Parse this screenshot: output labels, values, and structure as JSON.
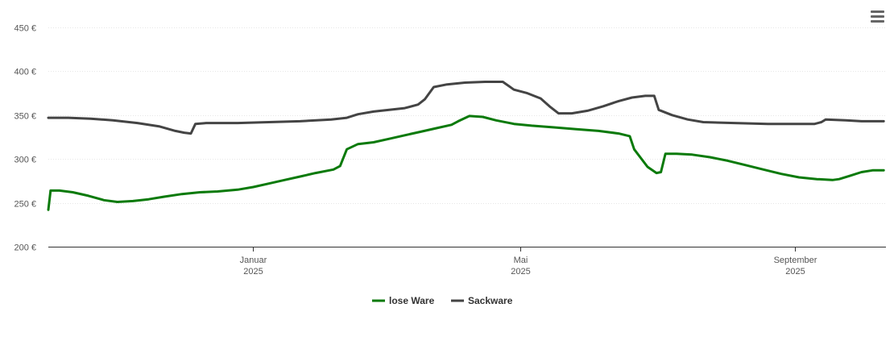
{
  "menu": {
    "icon": "hamburger-menu-icon"
  },
  "chart_data": {
    "type": "line",
    "title": "",
    "xlabel": "",
    "ylabel": "",
    "ylim": [
      200,
      450
    ],
    "yticks": [
      200,
      250,
      300,
      350,
      400,
      450
    ],
    "ytick_labels": [
      "200 €",
      "250 €",
      "300 €",
      "350 €",
      "400 €",
      "450 €"
    ],
    "xlim": [
      "2024-10-01",
      "2025-10-12"
    ],
    "xticks": [
      {
        "date": "2025-01-01",
        "label": "Januar",
        "year": "2025"
      },
      {
        "date": "2025-05-01",
        "label": "Mai",
        "year": "2025"
      },
      {
        "date": "2025-09-01",
        "label": "September",
        "year": "2025"
      }
    ],
    "grid": true,
    "legend": "bottom-center",
    "series": [
      {
        "name": "lose Ware",
        "color": "#0a7a0a",
        "points": [
          [
            "2024-10-01",
            242
          ],
          [
            "2024-10-02",
            264
          ],
          [
            "2024-10-06",
            264
          ],
          [
            "2024-10-12",
            262
          ],
          [
            "2024-10-19",
            258
          ],
          [
            "2024-10-26",
            253
          ],
          [
            "2024-11-01",
            251
          ],
          [
            "2024-11-08",
            252
          ],
          [
            "2024-11-15",
            254
          ],
          [
            "2024-11-22",
            257
          ],
          [
            "2024-11-30",
            260
          ],
          [
            "2024-12-08",
            262
          ],
          [
            "2024-12-16",
            263
          ],
          [
            "2024-12-25",
            265
          ],
          [
            "2025-01-01",
            268
          ],
          [
            "2025-01-08",
            272
          ],
          [
            "2025-01-15",
            276
          ],
          [
            "2025-01-22",
            280
          ],
          [
            "2025-01-29",
            284
          ],
          [
            "2025-02-06",
            288
          ],
          [
            "2025-02-09",
            292
          ],
          [
            "2025-02-12",
            311
          ],
          [
            "2025-02-17",
            317
          ],
          [
            "2025-02-24",
            319
          ],
          [
            "2025-03-03",
            323
          ],
          [
            "2025-03-10",
            327
          ],
          [
            "2025-03-17",
            331
          ],
          [
            "2025-03-24",
            335
          ],
          [
            "2025-03-31",
            339
          ],
          [
            "2025-04-03",
            343
          ],
          [
            "2025-04-08",
            349
          ],
          [
            "2025-04-14",
            348
          ],
          [
            "2025-04-20",
            344
          ],
          [
            "2025-04-28",
            340
          ],
          [
            "2025-05-06",
            338
          ],
          [
            "2025-05-16",
            336
          ],
          [
            "2025-05-26",
            334
          ],
          [
            "2025-06-05",
            332
          ],
          [
            "2025-06-14",
            329
          ],
          [
            "2025-06-19",
            326
          ],
          [
            "2025-06-21",
            311
          ],
          [
            "2025-06-27",
            291
          ],
          [
            "2025-07-01",
            284
          ],
          [
            "2025-07-03",
            285
          ],
          [
            "2025-07-05",
            306
          ],
          [
            "2025-07-10",
            306
          ],
          [
            "2025-07-17",
            305
          ],
          [
            "2025-07-25",
            302
          ],
          [
            "2025-08-02",
            298
          ],
          [
            "2025-08-10",
            293
          ],
          [
            "2025-08-18",
            288
          ],
          [
            "2025-08-26",
            283
          ],
          [
            "2025-09-03",
            279
          ],
          [
            "2025-09-11",
            277
          ],
          [
            "2025-09-18",
            276
          ],
          [
            "2025-09-21",
            277
          ],
          [
            "2025-09-26",
            281
          ],
          [
            "2025-10-01",
            285
          ],
          [
            "2025-10-06",
            287
          ],
          [
            "2025-10-11",
            287
          ]
        ]
      },
      {
        "name": "Sackware",
        "color": "#444444",
        "points": [
          [
            "2024-10-01",
            347
          ],
          [
            "2024-10-10",
            347
          ],
          [
            "2024-10-20",
            346
          ],
          [
            "2024-10-30",
            344
          ],
          [
            "2024-11-10",
            341
          ],
          [
            "2024-11-20",
            337
          ],
          [
            "2024-11-27",
            332
          ],
          [
            "2024-12-01",
            330
          ],
          [
            "2024-12-04",
            329
          ],
          [
            "2024-12-06",
            340
          ],
          [
            "2024-12-11",
            341
          ],
          [
            "2024-12-25",
            341
          ],
          [
            "2025-01-08",
            342
          ],
          [
            "2025-01-22",
            343
          ],
          [
            "2025-02-05",
            345
          ],
          [
            "2025-02-12",
            347
          ],
          [
            "2025-02-17",
            351
          ],
          [
            "2025-02-24",
            354
          ],
          [
            "2025-03-03",
            356
          ],
          [
            "2025-03-10",
            358
          ],
          [
            "2025-03-16",
            362
          ],
          [
            "2025-03-19",
            368
          ],
          [
            "2025-03-23",
            382
          ],
          [
            "2025-03-29",
            385
          ],
          [
            "2025-04-06",
            387
          ],
          [
            "2025-04-15",
            388
          ],
          [
            "2025-04-23",
            388
          ],
          [
            "2025-04-28",
            379
          ],
          [
            "2025-05-04",
            375
          ],
          [
            "2025-05-10",
            369
          ],
          [
            "2025-05-14",
            360
          ],
          [
            "2025-05-18",
            352
          ],
          [
            "2025-05-24",
            352
          ],
          [
            "2025-05-31",
            355
          ],
          [
            "2025-06-07",
            360
          ],
          [
            "2025-06-14",
            366
          ],
          [
            "2025-06-20",
            370
          ],
          [
            "2025-06-26",
            372
          ],
          [
            "2025-06-30",
            372
          ],
          [
            "2025-07-02",
            356
          ],
          [
            "2025-07-08",
            350
          ],
          [
            "2025-07-15",
            345
          ],
          [
            "2025-07-22",
            342
          ],
          [
            "2025-08-05",
            341
          ],
          [
            "2025-08-20",
            340
          ],
          [
            "2025-09-02",
            340
          ],
          [
            "2025-09-10",
            340
          ],
          [
            "2025-09-13",
            342
          ],
          [
            "2025-09-15",
            345
          ],
          [
            "2025-09-24",
            344
          ],
          [
            "2025-10-01",
            343
          ],
          [
            "2025-10-11",
            343
          ]
        ]
      }
    ]
  }
}
